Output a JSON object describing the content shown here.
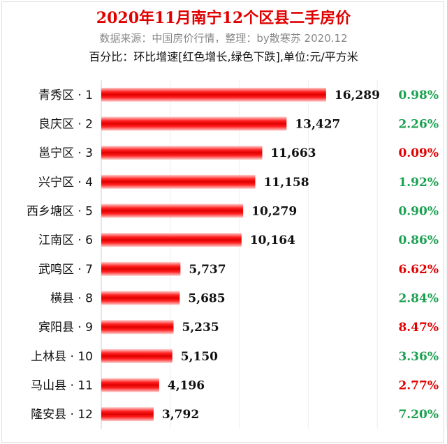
{
  "chart_data": {
    "type": "bar",
    "orientation": "horizontal",
    "title": "2020年11月南宁12个区县二手房价",
    "subtitle": "数据来源：中国房价行情，整理：by散寒苏 2020.12",
    "note": "百分比：环比增速[红色增长,绿色下跌],单位:元/平方米",
    "categories": [
      "青秀区 · 1",
      "良庆区 · 2",
      "邕宁区 · 3",
      "兴宁区 · 4",
      "西乡塘区 · 5",
      "江南区 · 6",
      "武鸣区 · 7",
      "横县 · 8",
      "宾阳县 · 9",
      "上林县 · 10",
      "马山县 · 11",
      "隆安县 · 12"
    ],
    "values": [
      16289,
      13427,
      11663,
      11158,
      10279,
      10164,
      5737,
      5685,
      5235,
      5150,
      4196,
      3792
    ],
    "value_labels": [
      "16,289",
      "13,427",
      "11,663",
      "11,158",
      "10,279",
      "10,164",
      "5,737",
      "5,685",
      "5,235",
      "5,150",
      "4,196",
      "3,792"
    ],
    "mom_change": [
      "0.98%",
      "2.26%",
      "0.09%",
      "1.92%",
      "0.90%",
      "0.86%",
      "6.62%",
      "2.84%",
      "8.47%",
      "3.36%",
      "2.77%",
      "7.20%"
    ],
    "mom_direction": [
      "down",
      "down",
      "up",
      "down",
      "down",
      "down",
      "up",
      "down",
      "up",
      "down",
      "up",
      "down"
    ],
    "xlim": [
      0,
      25000
    ],
    "grid": true,
    "colors": {
      "bar": "#ee0000",
      "up": "#e00000",
      "down": "#1aa050"
    }
  }
}
